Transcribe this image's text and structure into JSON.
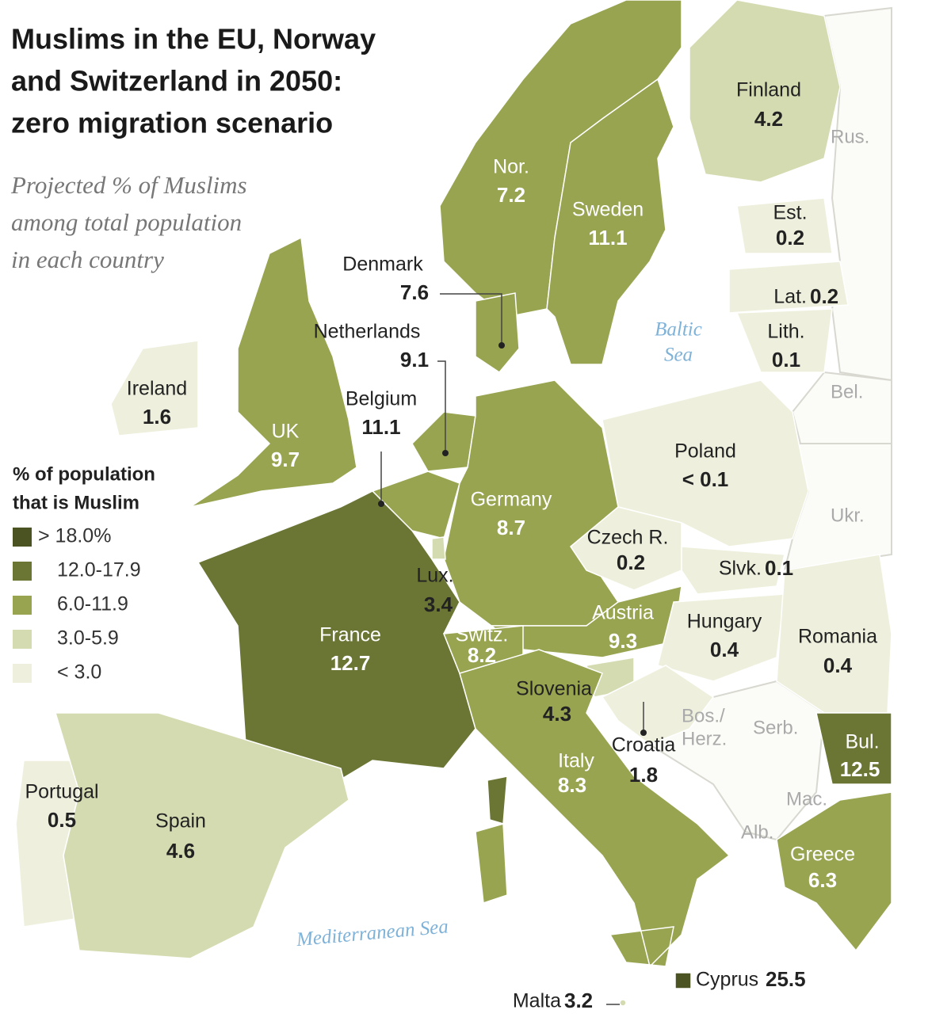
{
  "header": {
    "title_lines": [
      "Muslims in the EU, Norway",
      "and Switzerland in 2050:",
      "zero migration scenario"
    ],
    "subtitle_lines": [
      "Projected % of Muslims",
      "among total population",
      "in each country"
    ]
  },
  "legend": {
    "title_lines": [
      "% of population",
      "that is Muslim"
    ],
    "items": [
      {
        "label": "> 18.0%",
        "color": "#4b5322"
      },
      {
        "label": "12.0-17.9",
        "color": "#6b7534"
      },
      {
        "label": "6.0-11.9",
        "color": "#98a450"
      },
      {
        "label": "3.0-5.9",
        "color": "#d5dbb1"
      },
      {
        "label": "< 3.0",
        "color": "#eef0dd"
      }
    ]
  },
  "countries": [
    {
      "name": "Finland",
      "value": 4.2,
      "color": "#d5dbb1"
    },
    {
      "name": "Nor.",
      "value": 7.2,
      "color": "#98a450"
    },
    {
      "name": "Sweden",
      "value": 11.1,
      "color": "#98a450"
    },
    {
      "name": "Est.",
      "value": 0.2,
      "color": "#eef0dd"
    },
    {
      "name": "Lat.",
      "value": 0.2,
      "color": "#eef0dd"
    },
    {
      "name": "Lith.",
      "value": 0.1,
      "color": "#eef0dd"
    },
    {
      "name": "Denmark",
      "value": 7.6,
      "color": "#98a450"
    },
    {
      "name": "Netherlands",
      "value": 9.1,
      "color": "#98a450"
    },
    {
      "name": "Belgium",
      "value": 11.1,
      "color": "#98a450"
    },
    {
      "name": "Ireland",
      "value": 1.6,
      "color": "#eef0dd"
    },
    {
      "name": "UK",
      "value": 9.7,
      "color": "#98a450"
    },
    {
      "name": "Poland",
      "value": 0.1,
      "value_label": "< 0.1",
      "color": "#eef0dd"
    },
    {
      "name": "Germany",
      "value": 8.7,
      "color": "#98a450"
    },
    {
      "name": "Czech R.",
      "value": 0.2,
      "color": "#eef0dd"
    },
    {
      "name": "Slvk.",
      "value": 0.1,
      "color": "#eef0dd"
    },
    {
      "name": "Lux.",
      "value": 3.4,
      "color": "#d5dbb1"
    },
    {
      "name": "Austria",
      "value": 9.3,
      "color": "#98a450"
    },
    {
      "name": "Hungary",
      "value": 0.4,
      "color": "#eef0dd"
    },
    {
      "name": "Romania",
      "value": 0.4,
      "color": "#eef0dd"
    },
    {
      "name": "France",
      "value": 12.7,
      "color": "#6b7534"
    },
    {
      "name": "Switz.",
      "value": 8.2,
      "color": "#98a450"
    },
    {
      "name": "Slovenia",
      "value": 4.3,
      "color": "#d5dbb1"
    },
    {
      "name": "Croatia",
      "value": 1.8,
      "color": "#eef0dd"
    },
    {
      "name": "Bul.",
      "value": 12.5,
      "color": "#6b7534"
    },
    {
      "name": "Italy",
      "value": 8.3,
      "color": "#98a450"
    },
    {
      "name": "Portugal",
      "value": 0.5,
      "color": "#eef0dd"
    },
    {
      "name": "Spain",
      "value": 4.6,
      "color": "#d5dbb1"
    },
    {
      "name": "Greece",
      "value": 6.3,
      "color": "#98a450"
    },
    {
      "name": "Cyprus",
      "value": 25.5,
      "color": "#4b5322"
    },
    {
      "name": "Malta",
      "value": 3.2,
      "color": "#d5dbb1"
    }
  ],
  "other_labels": [
    "Rus.",
    "Bel.",
    "Ukr.",
    "Bos./",
    "Herz.",
    "Serb.",
    "Mac.",
    "Alb."
  ],
  "seas": [
    "Baltic",
    "Sea",
    "Mediterranean Sea"
  ]
}
